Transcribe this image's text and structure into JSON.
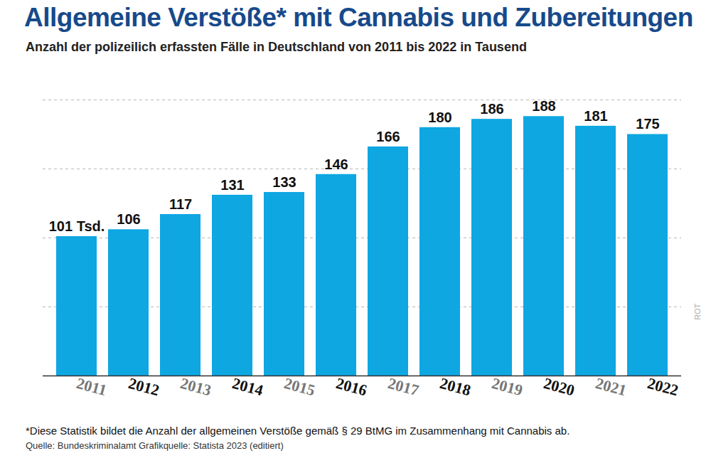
{
  "chart_data": {
    "type": "bar",
    "title": "Allgemeine Verstöße* mit Cannabis und Zubereitungen",
    "subtitle": "Anzahl der polizeilich erfassten Fälle in Deutschland von 2011 bis 2022 in Tausend",
    "categories": [
      "2011",
      "2012",
      "2013",
      "2014",
      "2015",
      "2016",
      "2017",
      "2018",
      "2019",
      "2020",
      "2021",
      "2022"
    ],
    "values": [
      101,
      106,
      117,
      131,
      133,
      146,
      166,
      180,
      186,
      188,
      181,
      175
    ],
    "value_labels": [
      "101 Tsd.",
      "106",
      "117",
      "131",
      "133",
      "146",
      "166",
      "180",
      "186",
      "188",
      "181",
      "175"
    ],
    "color": "#0ea7e2",
    "ylim": [
      0,
      200
    ],
    "yticks": [
      0,
      50,
      100,
      150,
      200
    ],
    "grid": true,
    "data_labels": true,
    "tick_labels": "x",
    "footnote": "*Diese Statistik bildet die Anzahl der allgemeinen Verstöße gemäß § 29 BtMG im Zusammenhang mit Cannabis ab.",
    "source": "Quelle: Bundeskriminalamt    Grafikquelle: Statista 2023 (editiert)",
    "credit": "ROT"
  }
}
